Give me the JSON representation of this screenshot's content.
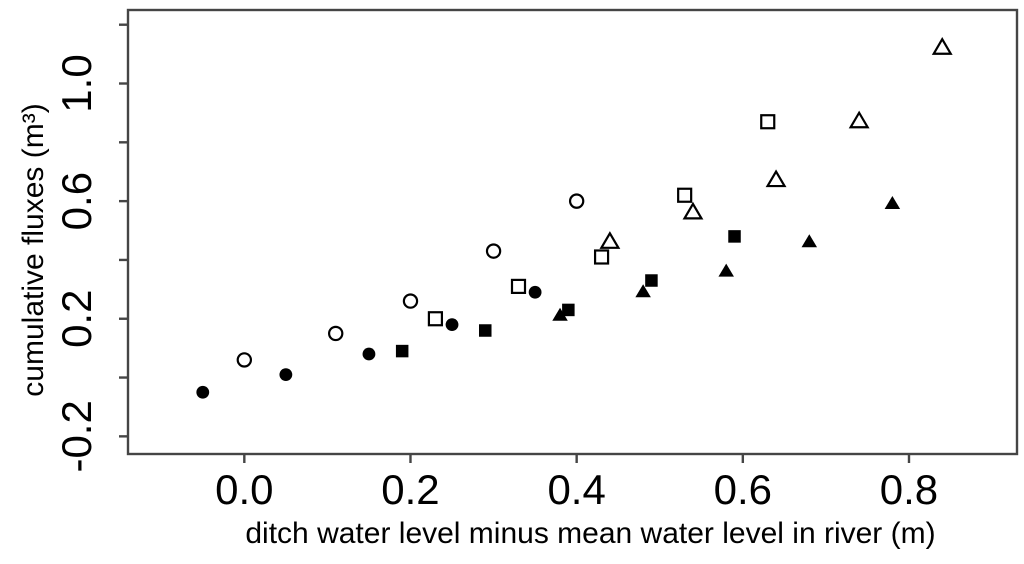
{
  "figure": {
    "background": "#ffffff",
    "text_color": "#000000",
    "axis_color": "#454545",
    "marker_color": "#000000"
  },
  "chart_data": {
    "type": "scatter",
    "title": "",
    "xlabel": "ditch water level minus mean water level in river (m)",
    "ylabel": "cumulative fluxes (m³)",
    "xlim": [
      -0.14,
      0.93
    ],
    "ylim": [
      -0.26,
      1.25
    ],
    "grid": false,
    "legend": "none",
    "x_ticks": [
      {
        "value": 0.0,
        "label": "0.0"
      },
      {
        "value": 0.2,
        "label": "0.2"
      },
      {
        "value": 0.4,
        "label": "0.4"
      },
      {
        "value": 0.6,
        "label": "0.6"
      },
      {
        "value": 0.8,
        "label": "0.8"
      }
    ],
    "y_ticks": [
      {
        "value": -0.2,
        "label": "-0.2"
      },
      {
        "value": 0.0,
        "label": ""
      },
      {
        "value": 0.2,
        "label": "0.2"
      },
      {
        "value": 0.4,
        "label": ""
      },
      {
        "value": 0.6,
        "label": "0.6"
      },
      {
        "value": 0.8,
        "label": ""
      },
      {
        "value": 1.0,
        "label": "1.0"
      },
      {
        "value": 1.2,
        "label": ""
      }
    ],
    "series": [
      {
        "name": "filled-circle",
        "marker": "circle",
        "fill": "filled",
        "points": [
          [
            -0.05,
            -0.05
          ],
          [
            0.05,
            0.01
          ],
          [
            0.15,
            0.08
          ],
          [
            0.25,
            0.18
          ],
          [
            0.35,
            0.29
          ]
        ]
      },
      {
        "name": "open-circle",
        "marker": "circle",
        "fill": "open",
        "points": [
          [
            0.0,
            0.06
          ],
          [
            0.11,
            0.15
          ],
          [
            0.2,
            0.26
          ],
          [
            0.3,
            0.43
          ],
          [
            0.4,
            0.6
          ]
        ]
      },
      {
        "name": "filled-square",
        "marker": "square",
        "fill": "filled",
        "points": [
          [
            0.19,
            0.09
          ],
          [
            0.29,
            0.16
          ],
          [
            0.39,
            0.23
          ],
          [
            0.49,
            0.33
          ],
          [
            0.59,
            0.48
          ]
        ]
      },
      {
        "name": "open-square",
        "marker": "square",
        "fill": "open",
        "points": [
          [
            0.23,
            0.2
          ],
          [
            0.33,
            0.31
          ],
          [
            0.43,
            0.41
          ],
          [
            0.53,
            0.62
          ],
          [
            0.63,
            0.87
          ]
        ]
      },
      {
        "name": "filled-triangle",
        "marker": "triangle",
        "fill": "filled",
        "points": [
          [
            0.38,
            0.21
          ],
          [
            0.48,
            0.29
          ],
          [
            0.58,
            0.36
          ],
          [
            0.68,
            0.46
          ],
          [
            0.78,
            0.59
          ]
        ]
      },
      {
        "name": "open-triangle",
        "marker": "triangle",
        "fill": "open",
        "points": [
          [
            0.44,
            0.46
          ],
          [
            0.54,
            0.56
          ],
          [
            0.64,
            0.67
          ],
          [
            0.74,
            0.87
          ],
          [
            0.84,
            1.12
          ]
        ]
      }
    ]
  }
}
